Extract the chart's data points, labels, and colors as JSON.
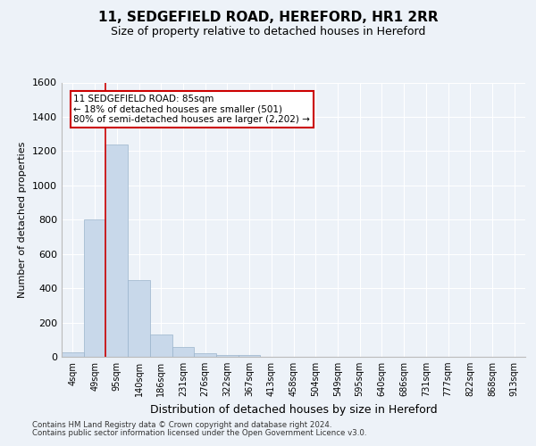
{
  "title1": "11, SEDGEFIELD ROAD, HEREFORD, HR1 2RR",
  "title2": "Size of property relative to detached houses in Hereford",
  "xlabel": "Distribution of detached houses by size in Hereford",
  "ylabel": "Number of detached properties",
  "footnote1": "Contains HM Land Registry data © Crown copyright and database right 2024.",
  "footnote2": "Contains public sector information licensed under the Open Government Licence v3.0.",
  "bar_labels": [
    "4sqm",
    "49sqm",
    "95sqm",
    "140sqm",
    "186sqm",
    "231sqm",
    "276sqm",
    "322sqm",
    "367sqm",
    "413sqm",
    "458sqm",
    "504sqm",
    "549sqm",
    "595sqm",
    "640sqm",
    "686sqm",
    "731sqm",
    "777sqm",
    "822sqm",
    "868sqm",
    "913sqm"
  ],
  "bar_values": [
    25,
    800,
    1240,
    450,
    130,
    55,
    20,
    12,
    8,
    0,
    0,
    0,
    0,
    0,
    0,
    0,
    0,
    0,
    0,
    0,
    0
  ],
  "bar_color": "#c8d8ea",
  "bar_edge_color": "#9ab4cc",
  "ylim_max": 1600,
  "yticks": [
    0,
    200,
    400,
    600,
    800,
    1000,
    1200,
    1400,
    1600
  ],
  "vline_pos": 1.5,
  "vline_color": "#cc0000",
  "annotation_line1": "11 SEDGEFIELD ROAD: 85sqm",
  "annotation_line2": "← 18% of detached houses are smaller (501)",
  "annotation_line3": "80% of semi-detached houses are larger (2,202) →",
  "bg_color": "#edf2f8",
  "grid_color": "#ffffff",
  "title1_fontsize": 11,
  "title2_fontsize": 9,
  "ylabel_fontsize": 8,
  "xlabel_fontsize": 9,
  "ytick_fontsize": 8,
  "xtick_fontsize": 7
}
